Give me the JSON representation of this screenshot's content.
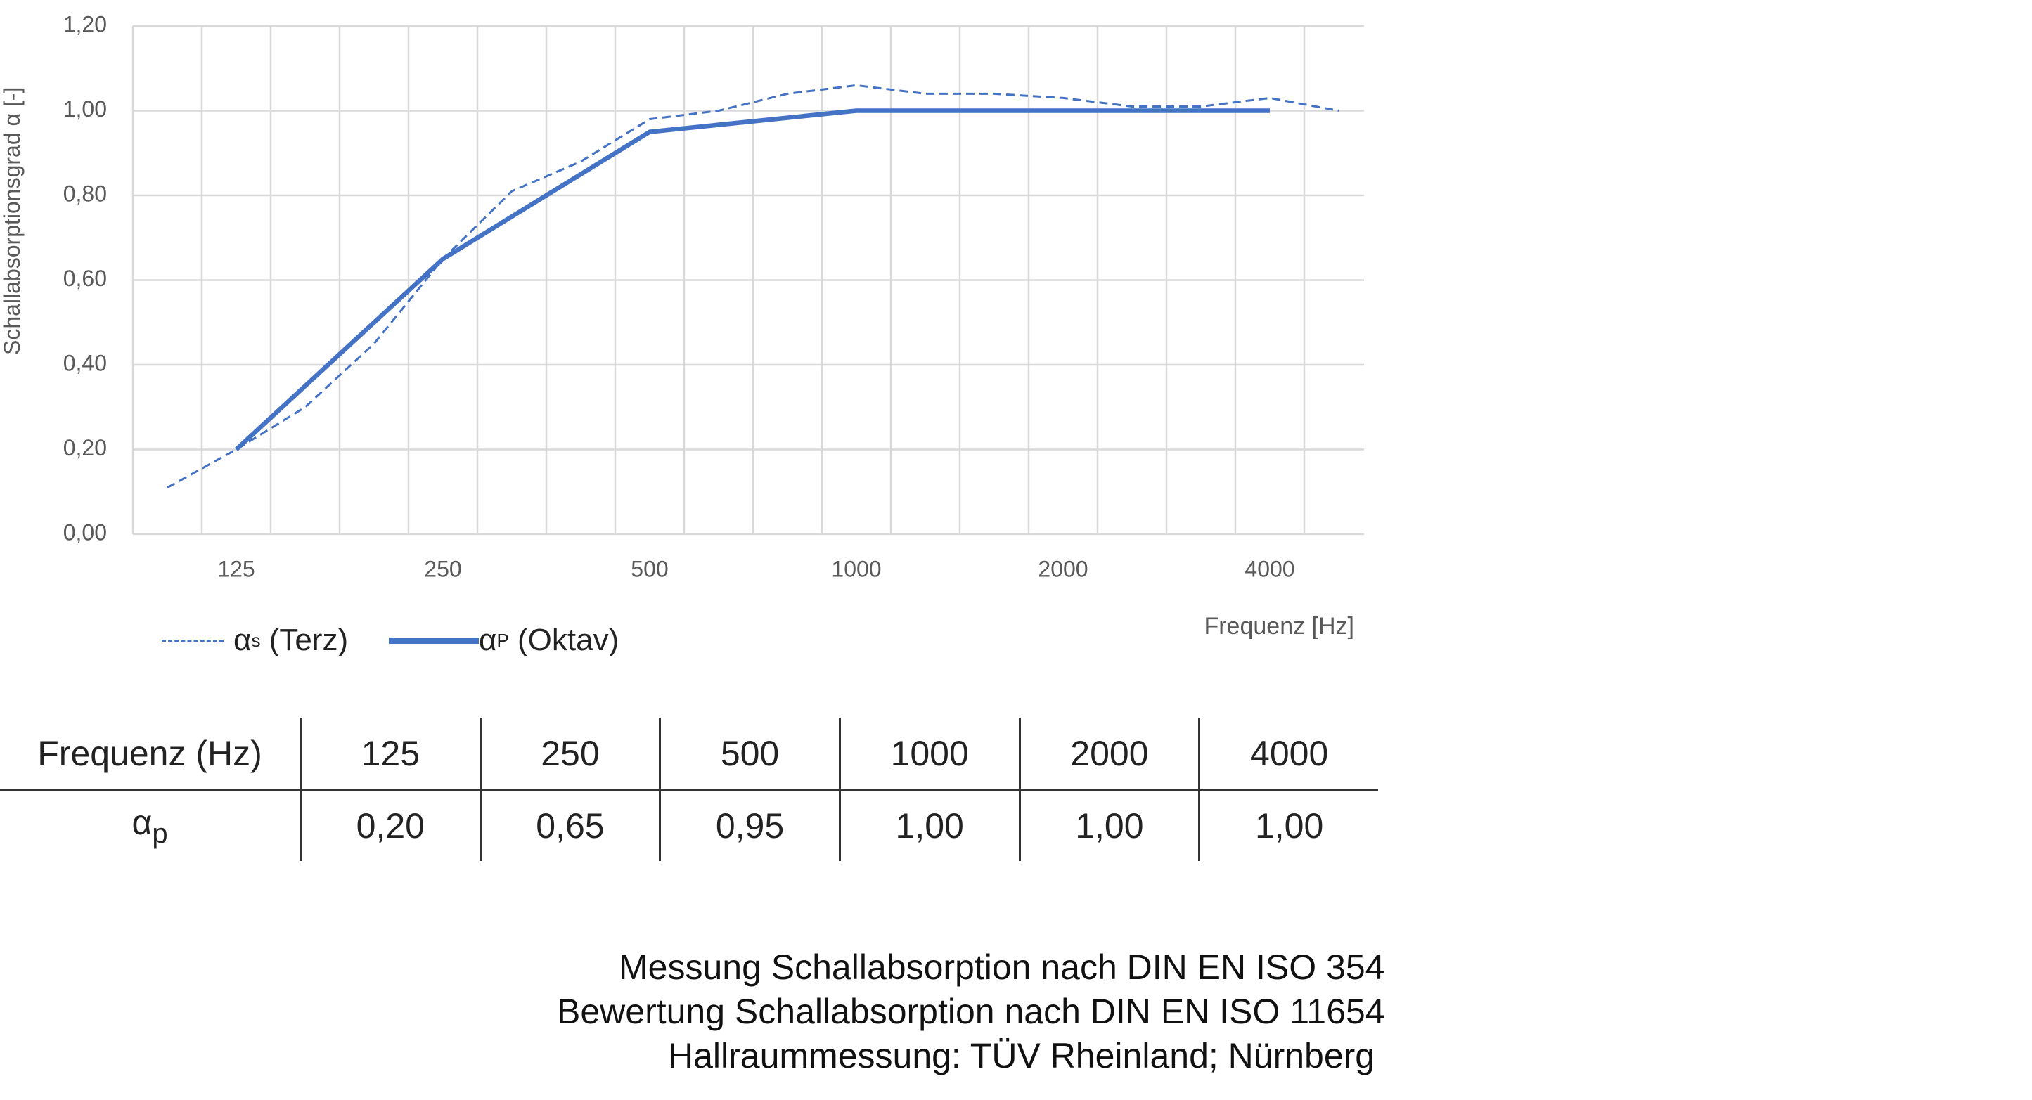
{
  "chart_data": {
    "type": "line",
    "xlabel": "Frequenz [Hz]",
    "ylabel": "Schallabsorptionsgrad α [-]",
    "ylim": [
      0,
      1.2
    ],
    "yticks": [
      "0,00",
      "0,20",
      "0,40",
      "0,60",
      "0,80",
      "1,00",
      "1,20"
    ],
    "grid": true,
    "legend_position": "bottom-left",
    "categories": [
      "100",
      "125",
      "160",
      "200",
      "250",
      "315",
      "400",
      "500",
      "630",
      "800",
      "1000",
      "1250",
      "1600",
      "2000",
      "2500",
      "3150",
      "4000",
      "5000"
    ],
    "xtick_labels": [
      "125",
      "250",
      "500",
      "1000",
      "2000",
      "4000"
    ],
    "series": [
      {
        "name": "αs (Terz)",
        "legend_symbol": "α",
        "legend_sub": "s",
        "legend_text": "(Terz)",
        "style": "dashed",
        "color": "#4472C4",
        "x": [
          "100",
          "125",
          "160",
          "200",
          "250",
          "315",
          "400",
          "500",
          "630",
          "800",
          "1000",
          "1250",
          "1600",
          "2000",
          "2500",
          "3150",
          "4000",
          "5000"
        ],
        "values": [
          0.11,
          0.2,
          0.3,
          0.45,
          0.65,
          0.81,
          0.88,
          0.98,
          1.0,
          1.04,
          1.06,
          1.04,
          1.04,
          1.03,
          1.01,
          1.01,
          1.03,
          1.0
        ]
      },
      {
        "name": "αP (Oktav)",
        "legend_symbol": "α",
        "legend_sub": "P",
        "legend_text": "(Oktav)",
        "style": "solid",
        "color": "#4472C4",
        "x": [
          "125",
          "250",
          "500",
          "1000",
          "2000",
          "4000"
        ],
        "values": [
          0.2,
          0.65,
          0.95,
          1.0,
          1.0,
          1.0
        ]
      }
    ]
  },
  "table": {
    "header_label": "Frequenz (Hz)",
    "row_label_symbol": "α",
    "row_label_sub": "p",
    "frequencies": [
      "125",
      "250",
      "500",
      "1000",
      "2000",
      "4000"
    ],
    "values": [
      "0,20",
      "0,65",
      "0,95",
      "1,00",
      "1,00",
      "1,00"
    ]
  },
  "notes": [
    "Messung Schallabsorption nach DIN EN ISO 354",
    "Bewertung Schallabsorption nach DIN EN ISO 11654",
    "Hallraummessung: TÜV Rheinland; Nürnberg"
  ]
}
